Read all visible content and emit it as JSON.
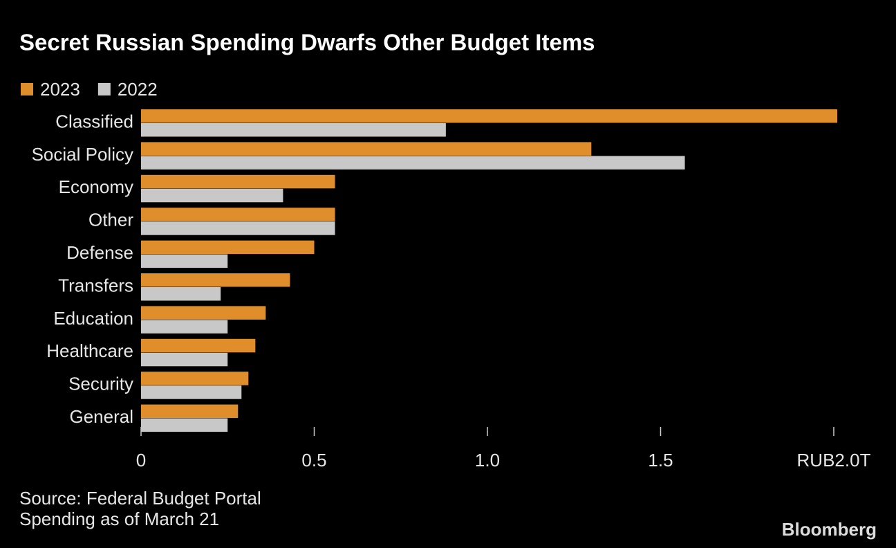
{
  "chart_data": {
    "type": "hbar",
    "title": "Secret Russian Spending Dwarfs Other Budget Items",
    "categories": [
      "Classified",
      "Social Policy",
      "Economy",
      "Other",
      "Defense",
      "Transfers",
      "Education",
      "Healthcare",
      "Security",
      "General"
    ],
    "series": [
      {
        "name": "2023",
        "color": "#e08e2b",
        "values": [
          2.01,
          1.3,
          0.56,
          0.56,
          0.5,
          0.43,
          0.36,
          0.33,
          0.31,
          0.28
        ]
      },
      {
        "name": "2022",
        "color": "#c8c8c8",
        "values": [
          0.88,
          1.57,
          0.41,
          0.56,
          0.25,
          0.23,
          0.25,
          0.25,
          0.29,
          0.25
        ]
      }
    ],
    "xlim": [
      0,
      2.1
    ],
    "xticks": [
      0,
      0.5,
      {
        "value": 1,
        "label": "1.0"
      },
      1.5,
      {
        "value": 2,
        "label": "RUB2.0T"
      }
    ],
    "notes": [
      "Source: Federal Budget Portal",
      "Spending as of March 21"
    ],
    "logo": "Bloomberg"
  }
}
